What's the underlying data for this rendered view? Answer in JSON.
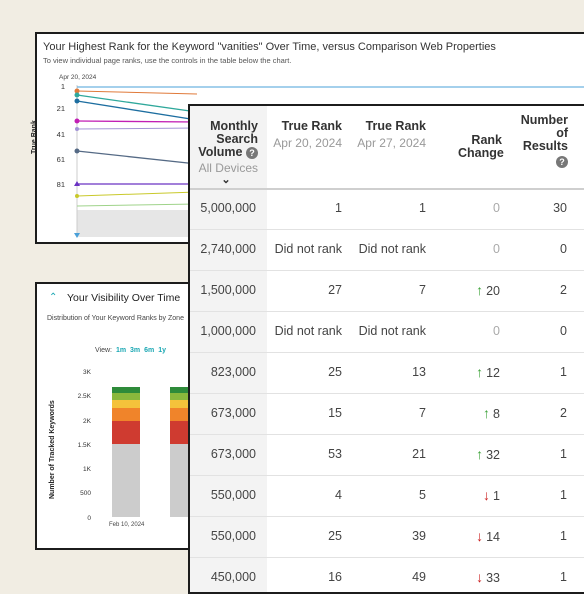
{
  "rank_panel": {
    "title": "Your Highest Rank for the Keyword \"vanities\" Over Time, versus Comparison Web Properties",
    "subtitle": "To view individual page ranks, use the controls in the table below the chart.",
    "date_label": "Apr 20, 2024",
    "y_label": "True Rank",
    "y_ticks": [
      "1",
      "21",
      "41",
      "61",
      "81"
    ]
  },
  "visibility_panel": {
    "title": "Your Visibility Over Time",
    "subtitle": "Distribution of Your Keyword Ranks by Zone",
    "view_label": "View:",
    "view_options": [
      "1m",
      "3m",
      "6m",
      "1y"
    ],
    "y_label": "Number of Tracked Keywords",
    "y_ticks": [
      "3K",
      "2.5K",
      "2K",
      "1.5K",
      "1K",
      "500",
      "0"
    ],
    "x_label": "Feb 10, 2024",
    "zone_colors": [
      "#cccccc",
      "#cf3b30",
      "#f0842a",
      "#f4c23b",
      "#8ab83c",
      "#2e8b3a"
    ]
  },
  "table": {
    "headers": {
      "msv": "Monthly Search Volume",
      "msv_sub": "All Devices",
      "tr1": "True Rank",
      "tr1_date": "Apr 20, 2024",
      "tr2": "True Rank",
      "tr2_date": "Apr 27, 2024",
      "change": "Rank Change",
      "results": "Number of Results",
      "help_glyph": "?"
    },
    "rows": [
      {
        "msv": "5,000,000",
        "tr1": "1",
        "tr2": "1",
        "change": "0",
        "dir": "none",
        "results": "30"
      },
      {
        "msv": "2,740,000",
        "tr1": "Did not rank",
        "tr2": "Did not rank",
        "change": "0",
        "dir": "none",
        "results": "0"
      },
      {
        "msv": "1,500,000",
        "tr1": "27",
        "tr2": "7",
        "change": "20",
        "dir": "up",
        "results": "2"
      },
      {
        "msv": "1,000,000",
        "tr1": "Did not rank",
        "tr2": "Did not rank",
        "change": "0",
        "dir": "none",
        "results": "0"
      },
      {
        "msv": "823,000",
        "tr1": "25",
        "tr2": "13",
        "change": "12",
        "dir": "up",
        "results": "1"
      },
      {
        "msv": "673,000",
        "tr1": "15",
        "tr2": "7",
        "change": "8",
        "dir": "up",
        "results": "2"
      },
      {
        "msv": "673,000",
        "tr1": "53",
        "tr2": "21",
        "change": "32",
        "dir": "up",
        "results": "1"
      },
      {
        "msv": "550,000",
        "tr1": "4",
        "tr2": "5",
        "change": "1",
        "dir": "down",
        "results": "1"
      },
      {
        "msv": "550,000",
        "tr1": "25",
        "tr2": "39",
        "change": "14",
        "dir": "down",
        "results": "1"
      },
      {
        "msv": "450,000",
        "tr1": "16",
        "tr2": "49",
        "change": "33",
        "dir": "down",
        "results": "1"
      }
    ]
  }
}
